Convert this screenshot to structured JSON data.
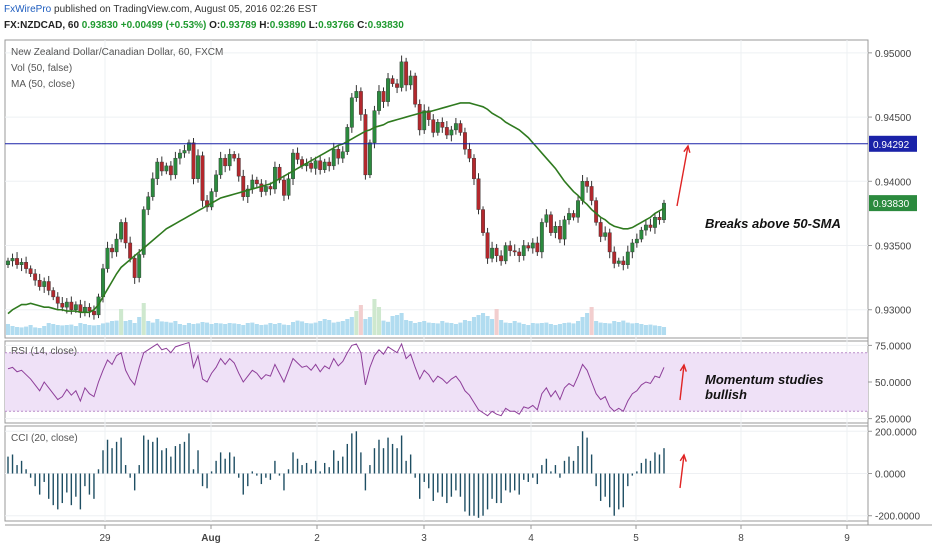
{
  "header": {
    "brand": "FxWirePro",
    "published": "published on TradingView.com, August 05, 2016 02:26 EST",
    "symbol": "FX:NZDCAD, 60",
    "last": "0.93830",
    "change": "+0.00499 (+0.53%)",
    "o_label": "O:",
    "o": "0.93789",
    "h_label": "H:",
    "h": "0.93890",
    "l_label": "L:",
    "l": "0.93766",
    "c_label": "C:",
    "c": "0.93830"
  },
  "legends": {
    "title": "New Zealand Dollar/Canadian Dollar, 60, FXCM",
    "vol": "Vol (50, false)",
    "ma": "MA (50, close)",
    "rsi": "RSI (14, close)",
    "cci": "CCI (20, close)"
  },
  "annotations": {
    "breaks": "Breaks above 50-SMA",
    "momentum_line1": "Momentum studies",
    "momentum_line2": "bullish"
  },
  "colors": {
    "up": "#2b8a3e",
    "down": "#b3282d",
    "ma": "#2f7a1f",
    "resistance": "#1a22a8",
    "rsi_line": "#8e3f9a",
    "rsi_band": "#efe1f7",
    "cci_bar": "#1e4e63",
    "vol_bar": "#a9d8ee",
    "arrow": "#e02424"
  },
  "chart_data": {
    "type": "candlestick",
    "price_axis": {
      "ticks": [
        "0.95000",
        "0.94500",
        "0.94000",
        "0.93500",
        "0.93000"
      ],
      "ylim": [
        0.9278,
        0.951
      ]
    },
    "x_labels": [
      "29",
      "Aug",
      "2",
      "3",
      "4",
      "5",
      "8",
      "9"
    ],
    "resistance_line": 0.94292,
    "resistance_label": "0.94292",
    "last_price": 0.9383,
    "last_price_label": "0.93830",
    "closes": [
      0.9338,
      0.934,
      0.9335,
      0.9337,
      0.9332,
      0.9328,
      0.9323,
      0.9318,
      0.9322,
      0.9315,
      0.931,
      0.9305,
      0.9302,
      0.9306,
      0.93,
      0.9304,
      0.9298,
      0.9302,
      0.9299,
      0.9296,
      0.931,
      0.9332,
      0.9348,
      0.9345,
      0.9355,
      0.9368,
      0.9352,
      0.934,
      0.9325,
      0.9343,
      0.9378,
      0.9388,
      0.9402,
      0.9415,
      0.9408,
      0.9412,
      0.9405,
      0.9418,
      0.9422,
      0.9424,
      0.943,
      0.9402,
      0.942,
      0.9385,
      0.938,
      0.9392,
      0.9405,
      0.9418,
      0.9412,
      0.9421,
      0.9418,
      0.9404,
      0.9388,
      0.9394,
      0.9401,
      0.9398,
      0.9392,
      0.9396,
      0.9394,
      0.9411,
      0.9401,
      0.9389,
      0.9402,
      0.9422,
      0.9417,
      0.9412,
      0.9414,
      0.941,
      0.9416,
      0.9409,
      0.9415,
      0.9412,
      0.9425,
      0.9418,
      0.9423,
      0.9442,
      0.9465,
      0.947,
      0.9452,
      0.9405,
      0.943,
      0.9455,
      0.947,
      0.9462,
      0.948,
      0.9476,
      0.9473,
      0.9493,
      0.9475,
      0.9482,
      0.946,
      0.944,
      0.9455,
      0.9448,
      0.9438,
      0.9446,
      0.9442,
      0.9436,
      0.944,
      0.9445,
      0.9438,
      0.9425,
      0.9418,
      0.9402,
      0.9378,
      0.936,
      0.934,
      0.9348,
      0.9342,
      0.9338,
      0.935,
      0.9346,
      0.9345,
      0.9342,
      0.935,
      0.9348,
      0.9352,
      0.9345,
      0.9368,
      0.9374,
      0.936,
      0.9365,
      0.9355,
      0.937,
      0.9375,
      0.9372,
      0.9385,
      0.94,
      0.9396,
      0.9385,
      0.9368,
      0.9357,
      0.936,
      0.9345,
      0.9336,
      0.9338,
      0.9335,
      0.9345,
      0.9352,
      0.9355,
      0.9362,
      0.9366,
      0.9364,
      0.9372,
      0.937,
      0.9383
    ],
    "volumes": [
      0.55,
      0.45,
      0.4,
      0.38,
      0.42,
      0.5,
      0.38,
      0.35,
      0.45,
      0.6,
      0.55,
      0.5,
      0.48,
      0.5,
      0.52,
      0.45,
      0.6,
      0.55,
      0.5,
      0.48,
      0.5,
      0.58,
      0.62,
      0.7,
      0.72,
      1.3,
      0.7,
      0.75,
      0.6,
      0.9,
      1.6,
      0.7,
      0.62,
      0.8,
      0.68,
      0.66,
      0.62,
      0.7,
      0.55,
      0.5,
      0.6,
      0.55,
      0.58,
      0.65,
      0.62,
      0.55,
      0.6,
      0.58,
      0.55,
      0.6,
      0.58,
      0.55,
      0.5,
      0.6,
      0.62,
      0.55,
      0.5,
      0.52,
      0.6,
      0.55,
      0.6,
      0.52,
      0.5,
      0.65,
      0.72,
      0.68,
      0.6,
      0.58,
      0.62,
      0.7,
      0.8,
      0.75,
      0.62,
      0.66,
      0.7,
      0.8,
      0.9,
      1.2,
      1.5,
      0.8,
      0.9,
      1.8,
      1.4,
      0.72,
      0.66,
      0.95,
      1.0,
      1.1,
      0.75,
      0.7,
      0.6,
      0.65,
      0.7,
      0.62,
      0.6,
      0.58,
      0.7,
      0.62,
      0.6,
      0.55,
      0.62,
      0.75,
      0.7,
      0.9,
      1.0,
      1.1,
      0.95,
      0.8,
      1.3,
      0.75,
      0.62,
      0.6,
      0.7,
      0.62,
      0.55,
      0.5,
      0.6,
      0.58,
      0.6,
      0.62,
      0.55,
      0.5,
      0.55,
      0.6,
      0.62,
      0.58,
      0.7,
      0.9,
      1.1,
      1.4,
      0.7,
      0.62,
      0.6,
      0.58,
      0.7,
      0.65,
      0.72,
      0.62,
      0.58,
      0.6,
      0.55,
      0.5,
      0.52,
      0.48,
      0.45,
      0.4
    ],
    "ma": {
      "name": "MA (50, close)",
      "values": [
        0.9297,
        0.93,
        0.9302,
        0.9304,
        0.9304,
        0.9305,
        0.9304,
        0.9303,
        0.9302,
        0.9302,
        0.9301,
        0.93,
        0.93,
        0.9299,
        0.9299,
        0.9299,
        0.9298,
        0.9298,
        0.9298,
        0.93,
        0.9304,
        0.931,
        0.9316,
        0.9322,
        0.9328,
        0.9333,
        0.9336,
        0.9339,
        0.9342,
        0.9345,
        0.9348,
        0.9351,
        0.9354,
        0.9357,
        0.936,
        0.9363,
        0.9365,
        0.9367,
        0.9369,
        0.9371,
        0.9373,
        0.9375,
        0.9377,
        0.9379,
        0.9381,
        0.9383,
        0.9385,
        0.9387,
        0.9388,
        0.9389,
        0.939,
        0.9391,
        0.9392,
        0.9393,
        0.9394,
        0.9395,
        0.9396,
        0.9397,
        0.9398,
        0.94,
        0.9402,
        0.9404,
        0.9406,
        0.9408,
        0.941,
        0.9412,
        0.9414,
        0.9416,
        0.9418,
        0.942,
        0.9422,
        0.9424,
        0.9426,
        0.9428,
        0.9429,
        0.9431,
        0.9433,
        0.9435,
        0.9437,
        0.9439,
        0.944,
        0.9442,
        0.9443,
        0.9444,
        0.9446,
        0.9447,
        0.9448,
        0.9449,
        0.945,
        0.9451,
        0.9452,
        0.9453,
        0.9454,
        0.9454,
        0.9455,
        0.9456,
        0.9457,
        0.9458,
        0.9459,
        0.946,
        0.9461,
        0.9461,
        0.9461,
        0.946,
        0.9459,
        0.9458,
        0.9456,
        0.9453,
        0.9451,
        0.9449,
        0.9446,
        0.9444,
        0.9442,
        0.944,
        0.9437,
        0.9434,
        0.943,
        0.9426,
        0.9422,
        0.9418,
        0.9414,
        0.941,
        0.9405,
        0.94,
        0.9396,
        0.9392,
        0.9389,
        0.9385,
        0.9382,
        0.9378,
        0.9375,
        0.9372,
        0.937,
        0.9367,
        0.9365,
        0.9364,
        0.9363,
        0.9363,
        0.9364,
        0.9366,
        0.9368,
        0.937,
        0.9372,
        0.9375,
        0.9377,
        0.9379
      ]
    },
    "rsi": {
      "name": "RSI (14, close)",
      "ticks": [
        "75.0000",
        "50.0000",
        "25.0000"
      ],
      "ylim": [
        22,
        78
      ],
      "values": [
        59,
        60,
        57,
        58,
        55,
        52,
        48,
        44,
        50,
        46,
        42,
        38,
        40,
        45,
        41,
        44,
        37,
        46,
        42,
        40,
        50,
        58,
        65,
        62,
        68,
        70,
        58,
        52,
        48,
        60,
        70,
        72,
        74,
        76,
        72,
        73,
        70,
        74,
        75,
        76,
        77,
        60,
        68,
        52,
        50,
        56,
        60,
        66,
        62,
        66,
        63,
        56,
        50,
        54,
        58,
        56,
        52,
        55,
        54,
        62,
        56,
        50,
        58,
        66,
        63,
        60,
        61,
        58,
        62,
        57,
        61,
        59,
        66,
        61,
        64,
        70,
        75,
        76,
        70,
        48,
        60,
        68,
        72,
        69,
        74,
        72,
        70,
        76,
        66,
        69,
        60,
        52,
        58,
        55,
        50,
        54,
        52,
        49,
        52,
        54,
        50,
        44,
        41,
        36,
        31,
        29,
        27,
        30,
        28,
        27,
        32,
        30,
        30,
        28,
        33,
        32,
        34,
        31,
        42,
        46,
        40,
        44,
        38,
        46,
        49,
        47,
        54,
        62,
        58,
        50,
        42,
        38,
        40,
        33,
        30,
        32,
        30,
        37,
        42,
        44,
        48,
        50,
        49,
        54,
        53,
        60
      ]
    },
    "cci": {
      "name": "CCI (20, close)",
      "ticks": [
        "200.0000",
        "0.0000",
        "-200.0000"
      ],
      "ylim": [
        -225,
        225
      ],
      "values": [
        80,
        90,
        40,
        60,
        20,
        -20,
        -60,
        -100,
        -40,
        -120,
        -150,
        -170,
        -140,
        -90,
        -150,
        -110,
        -170,
        -60,
        -100,
        -120,
        20,
        110,
        160,
        120,
        150,
        170,
        40,
        -20,
        -80,
        40,
        180,
        160,
        150,
        170,
        110,
        120,
        80,
        130,
        140,
        150,
        190,
        20,
        110,
        -60,
        -70,
        10,
        60,
        100,
        70,
        100,
        80,
        -20,
        -100,
        -60,
        10,
        -10,
        -50,
        -20,
        -30,
        60,
        -10,
        -80,
        20,
        100,
        70,
        40,
        50,
        20,
        60,
        10,
        50,
        30,
        110,
        60,
        80,
        140,
        190,
        200,
        100,
        -80,
        40,
        120,
        160,
        120,
        170,
        140,
        120,
        180,
        60,
        90,
        -20,
        -120,
        -40,
        -70,
        -130,
        -90,
        -110,
        -140,
        -110,
        -80,
        -110,
        -180,
        -200,
        -200,
        -210,
        -200,
        -170,
        -120,
        -140,
        -140,
        -80,
        -90,
        -80,
        -100,
        -30,
        -40,
        -20,
        -50,
        40,
        70,
        10,
        40,
        -20,
        60,
        80,
        60,
        130,
        200,
        170,
        90,
        -60,
        -130,
        -110,
        -160,
        -200,
        -170,
        -160,
        -60,
        -10,
        10,
        50,
        70,
        60,
        100,
        90,
        120
      ]
    }
  }
}
